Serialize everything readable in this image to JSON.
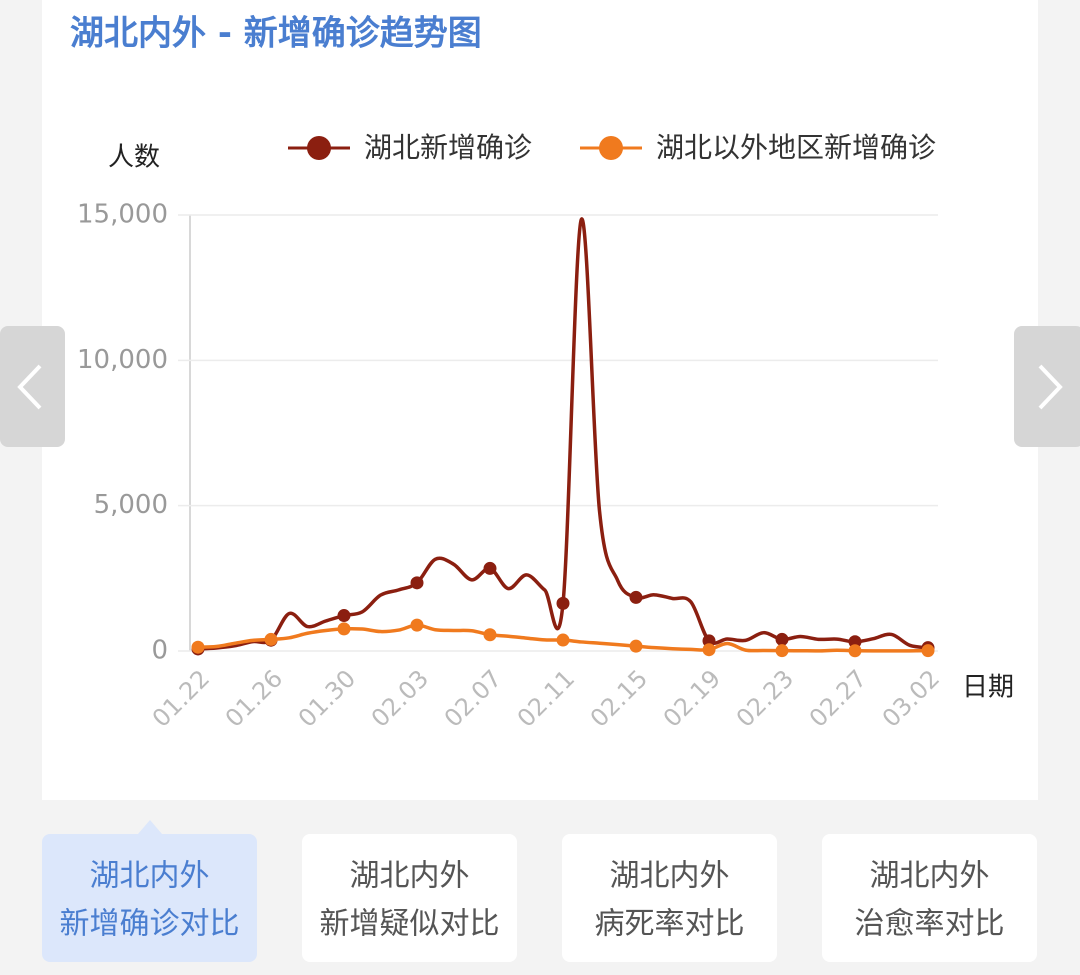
{
  "chart_data": {
    "type": "line",
    "title": "湖北内外 - 新增确诊趋势图",
    "y_label": "人数",
    "x_label": "日期",
    "categories": [
      "01.22",
      null,
      null,
      null,
      "01.26",
      null,
      null,
      null,
      "01.30",
      null,
      null,
      null,
      "02.03",
      null,
      null,
      null,
      "02.07",
      null,
      null,
      null,
      "02.11",
      null,
      null,
      null,
      "02.15",
      null,
      null,
      null,
      "02.19",
      null,
      null,
      null,
      "02.23",
      null,
      null,
      null,
      "02.27",
      null,
      null,
      null,
      "03.02"
    ],
    "series": [
      {
        "name": "湖北新增确诊",
        "color": "#8b1f10",
        "values": [
          70,
          105,
          180,
          323,
          371,
          1291,
          840,
          1032,
          1220,
          1347,
          1921,
          2103,
          2345,
          3156,
          2987,
          2447,
          2841,
          2147,
          2618,
          2097,
          1638,
          14840,
          4823,
          2420,
          1843,
          1933,
          1807,
          1693,
          349,
          411,
          366,
          630,
          398,
          499,
          401,
          409,
          318,
          423,
          570,
          196,
          114
        ]
      },
      {
        "name": "湖北以外地区新增确诊",
        "color": "#f07a1e",
        "values": [
          131,
          154,
          264,
          365,
          398,
          454,
          610,
          705,
          762,
          755,
          669,
          721,
          890,
          731,
          707,
          696,
          558,
          509,
          444,
          381,
          377,
          312,
          267,
          221,
          166,
          115,
          79,
          56,
          45,
          258,
          31,
          18,
          11,
          9,
          5,
          24,
          9,
          4,
          3,
          6,
          11
        ]
      }
    ],
    "ylim": [
      0,
      15000
    ],
    "yticks": [
      0,
      {
        "value": 5000,
        "label": "5,000"
      },
      {
        "value": 10000,
        "label": "10,000"
      },
      {
        "value": 15000,
        "label": "15,000"
      }
    ],
    "grid": true
  },
  "tabs": [
    [
      "湖北内外",
      "新增确诊对比"
    ],
    [
      "湖北内外",
      "新增疑似对比"
    ],
    [
      "湖北内外",
      "病死率对比"
    ],
    [
      "湖北内外",
      "治愈率对比"
    ]
  ],
  "active_tab": 0
}
